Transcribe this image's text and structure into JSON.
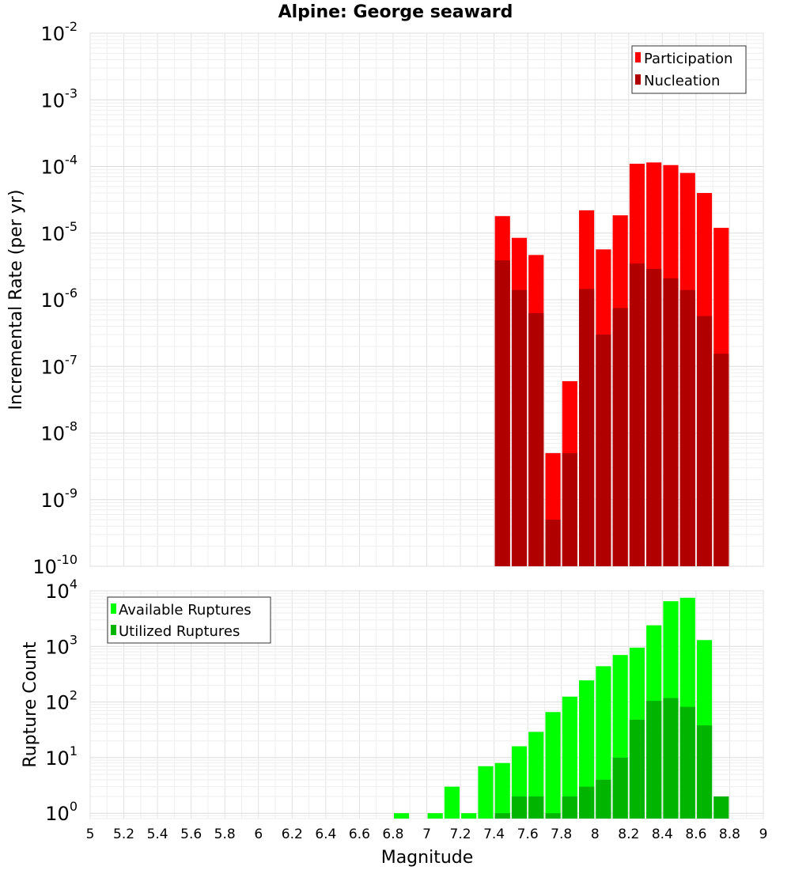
{
  "chart_data": [
    {
      "type": "bar",
      "title": "Alpine: George seaward",
      "xlabel": "",
      "ylabel": "Incremental Rate (per yr)",
      "yscale": "log",
      "ylim": [
        1e-10,
        0.01
      ],
      "xlim": [
        5,
        9
      ],
      "grid": true,
      "legend_position": "top-right",
      "colors": {
        "Participation": "#ff0000",
        "Nucleation": "#b00000"
      },
      "ytick_labels": [
        {
          "base": "10",
          "exp": "-10"
        },
        {
          "base": "10",
          "exp": "-9"
        },
        {
          "base": "10",
          "exp": "-8"
        },
        {
          "base": "10",
          "exp": "-7"
        },
        {
          "base": "10",
          "exp": "-6"
        },
        {
          "base": "10",
          "exp": "-5"
        },
        {
          "base": "10",
          "exp": "-4"
        },
        {
          "base": "10",
          "exp": "-3"
        },
        {
          "base": "10",
          "exp": "-2"
        }
      ],
      "series": [
        {
          "name": "Participation",
          "points": [
            [
              7.45,
              1.8e-05
            ],
            [
              7.55,
              8.5e-06
            ],
            [
              7.65,
              4.7e-06
            ],
            [
              7.75,
              5e-09
            ],
            [
              7.85,
              6e-08
            ],
            [
              7.95,
              2.2e-05
            ],
            [
              8.05,
              5.7e-06
            ],
            [
              8.15,
              1.85e-05
            ],
            [
              8.25,
              0.00011
            ],
            [
              8.35,
              0.000115
            ],
            [
              8.45,
              0.000105
            ],
            [
              8.55,
              8e-05
            ],
            [
              8.65,
              4e-05
            ],
            [
              8.75,
              1.2e-05
            ]
          ]
        },
        {
          "name": "Nucleation",
          "points": [
            [
              7.45,
              3.9e-06
            ],
            [
              7.55,
              1.4e-06
            ],
            [
              7.65,
              6.3e-07
            ],
            [
              7.75,
              5e-10
            ],
            [
              7.85,
              5e-09
            ],
            [
              7.95,
              1.45e-06
            ],
            [
              8.05,
              3e-07
            ],
            [
              8.15,
              7.5e-07
            ],
            [
              8.25,
              3.5e-06
            ],
            [
              8.35,
              2.9e-06
            ],
            [
              8.45,
              2.1e-06
            ],
            [
              8.55,
              1.4e-06
            ],
            [
              8.65,
              5.7e-07
            ],
            [
              8.75,
              1.55e-07
            ]
          ]
        }
      ]
    },
    {
      "type": "bar",
      "title": "",
      "xlabel": "Magnitude",
      "ylabel": "Rupture Count",
      "yscale": "log",
      "ylim": [
        0.8,
        10000
      ],
      "xlim": [
        5,
        9
      ],
      "grid": true,
      "legend_position": "top-left",
      "colors": {
        "Available Ruptures": "#00ff00",
        "Utilized Ruptures": "#00b400"
      },
      "xtick_labels": [
        "5",
        "5.2",
        "5.4",
        "5.6",
        "5.8",
        "6",
        "6.2",
        "6.4",
        "6.6",
        "6.8",
        "7",
        "7.2",
        "7.4",
        "7.6",
        "7.8",
        "8",
        "8.2",
        "8.4",
        "8.6",
        "8.8",
        "9"
      ],
      "ytick_labels": [
        {
          "base": "10",
          "exp": "0"
        },
        {
          "base": "10",
          "exp": "1"
        },
        {
          "base": "10",
          "exp": "2"
        },
        {
          "base": "10",
          "exp": "3"
        },
        {
          "base": "10",
          "exp": "4"
        }
      ],
      "series": [
        {
          "name": "Available Ruptures",
          "points": [
            [
              6.85,
              1
            ],
            [
              7.05,
              1
            ],
            [
              7.15,
              3
            ],
            [
              7.25,
              1
            ],
            [
              7.35,
              7
            ],
            [
              7.45,
              8
            ],
            [
              7.55,
              16
            ],
            [
              7.65,
              29
            ],
            [
              7.75,
              66
            ],
            [
              7.85,
              125
            ],
            [
              7.95,
              245
            ],
            [
              8.05,
              440
            ],
            [
              8.15,
              700
            ],
            [
              8.25,
              950
            ],
            [
              8.35,
              2400
            ],
            [
              8.45,
              6500
            ],
            [
              8.55,
              7500
            ],
            [
              8.65,
              1300
            ]
          ]
        },
        {
          "name": "Utilized Ruptures",
          "points": [
            [
              7.45,
              1
            ],
            [
              7.55,
              2
            ],
            [
              7.65,
              2
            ],
            [
              7.75,
              1
            ],
            [
              7.85,
              2
            ],
            [
              7.95,
              3
            ],
            [
              8.05,
              4
            ],
            [
              8.15,
              10
            ],
            [
              8.25,
              48
            ],
            [
              8.35,
              105
            ],
            [
              8.45,
              118
            ],
            [
              8.55,
              82
            ],
            [
              8.65,
              38
            ],
            [
              8.75,
              2
            ]
          ]
        }
      ]
    }
  ]
}
